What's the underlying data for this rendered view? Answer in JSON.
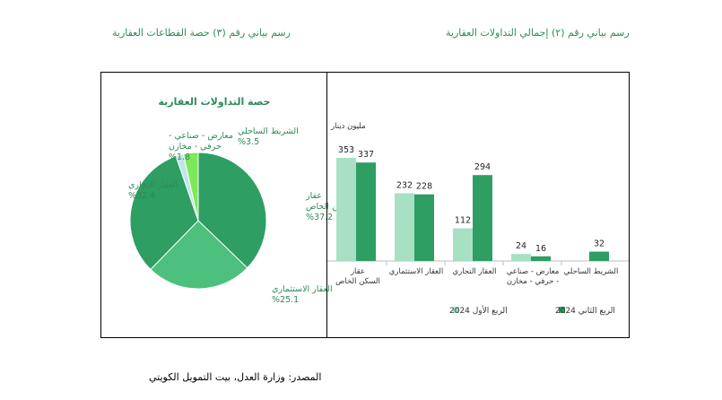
{
  "captions": {
    "right": "رسم بياني رقم (٢) إجمالي التداولات العقارية",
    "left": "رسم بياني رقم (٣) حصة القطاعات العقارية"
  },
  "source": "المصدر: وزارة العدل، بيت التمويل الكويتي",
  "colors": {
    "dark_green": "#2e9e62",
    "light_green": "#a8e0c4",
    "mid_green": "#4cc07c",
    "pie_light_blue": "#bfe6e6",
    "pie_lime": "#7de85a",
    "text_green": "#2e8b57"
  },
  "chart_data": [
    {
      "type": "pie",
      "title": "حصة التداولات العقارية",
      "slices": [
        {
          "name": "عقار السكن الخاص",
          "value": 37.2,
          "label": "%37.2",
          "color": "#2e9e62"
        },
        {
          "name": "العقار الاستثماري",
          "value": 25.1,
          "label": "%25.1",
          "color": "#4cc07c"
        },
        {
          "name": "العقار التجاري",
          "value": 32.4,
          "label": "%32.4",
          "color": "#2e9e62"
        },
        {
          "name": "معارض - صناعي - حرفي - مخازن",
          "value": 1.8,
          "label": "%1.8",
          "color": "#bfe6e6"
        },
        {
          "name": "الشريط الساحلي",
          "value": 3.5,
          "label": "%3.5",
          "color": "#7de85a"
        }
      ],
      "label_lines": {
        "s0": [
          "عقار",
          "السكن الخاص",
          "%37.2"
        ],
        "s1": [
          "العقار الاستثماري",
          "%25.1"
        ],
        "s2": [
          "العقار التجاري",
          "%32.4"
        ],
        "s3": [
          "معارض - صناعي -",
          "حرفي - مخازن",
          "%1.8"
        ],
        "s4": [
          "الشريط الساحلي",
          "%3.5"
        ]
      }
    },
    {
      "type": "bar",
      "ylabel": "مليون دينار",
      "categories": [
        "عقار السكن الخاص",
        "العقار الاستثماري",
        "العقار التجاري",
        "معارض - صناعي - حرفي - مخازن",
        "الشريط الساحلي"
      ],
      "category_lines": [
        [
          "عقار",
          "السكن الخاص"
        ],
        [
          "العقار الاستثماري"
        ],
        [
          "العقار التجاري"
        ],
        [
          "معارض - صناعي",
          "- حرفي - مخازن"
        ],
        [
          "الشريط الساحلي"
        ]
      ],
      "series": [
        {
          "name": "الربع الأول 2024",
          "values": [
            353,
            232,
            112,
            24,
            null
          ],
          "color": "#a8e0c4"
        },
        {
          "name": "الربع الثاني 2024",
          "values": [
            337,
            228,
            294,
            16,
            32
          ],
          "color": "#2e9e62"
        }
      ],
      "legend_placement": "bottom"
    }
  ]
}
